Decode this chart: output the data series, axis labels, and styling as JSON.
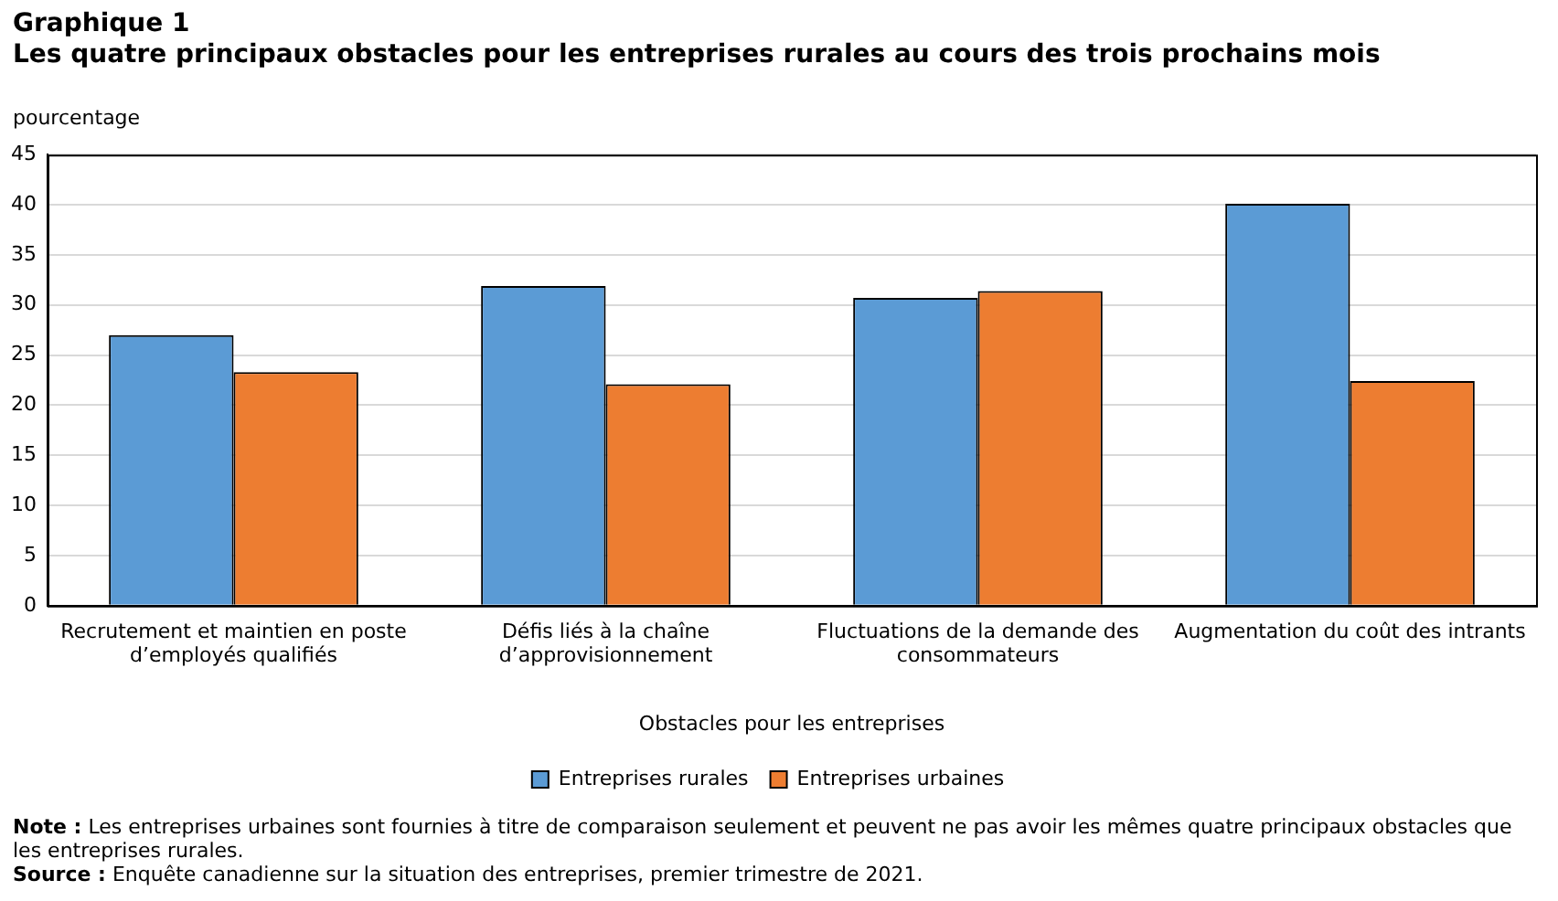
{
  "chart_data": {
    "type": "bar",
    "title": "Graphique 1",
    "subtitle": "Les quatre principaux obstacles pour les entreprises rurales au cours des trois prochains mois",
    "ylabel": "pourcentage",
    "xlabel": "Obstacles pour les entreprises",
    "categories": [
      "Recrutement et maintien en poste d’employés qualifiés",
      "Défis liés à la chaîne d’approvisionnement",
      "Fluctuations de la demande des consommateurs",
      "Augmentation du coût des intrants"
    ],
    "series": [
      {
        "name": "Entreprises rurales",
        "color": "#5b9bd5",
        "values": [
          27.0,
          31.9,
          30.7,
          40.1
        ]
      },
      {
        "name": "Entreprises urbaines",
        "color": "#ed7d31",
        "values": [
          23.3,
          22.1,
          31.4,
          22.4
        ]
      }
    ],
    "ylim": [
      0,
      45
    ],
    "yticks": [
      0,
      5,
      10,
      15,
      20,
      25,
      30,
      35,
      40,
      45
    ],
    "grid": "y",
    "legend": "bottom",
    "annotations": [
      "Note : Les entreprises urbaines sont fournies à titre de comparaison seulement et peuvent ne pas avoir les mêmes quatre principaux obstacles que les entreprises rurales.",
      "Source : Enquête canadienne sur la situation des entreprises, premier trimestre de 2021."
    ]
  }
}
